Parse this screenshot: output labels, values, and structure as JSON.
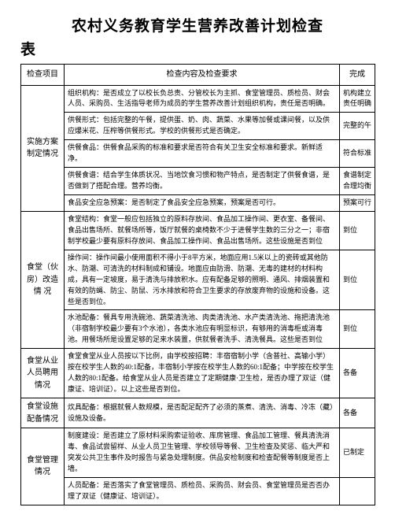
{
  "title": "农村义务教育学生营养改善计划检查",
  "subtitle": "表",
  "headers": {
    "project": "检查项目",
    "content": "检查内容及检查要求",
    "status": "完成"
  },
  "sections": [
    {
      "project": "实施方案制定情况",
      "rows": [
        {
          "content": "组织机构：是否成立了以校长负总责、分管校长为主抓、食堂管理员、质检员、财会人员、采购员、生活指导老师为成员的学生营养改善计划组织机构，责任是否明确。",
          "status": "机构建立 责任明确"
        },
        {
          "content": "供餐形式：包括完整的午餐，提供蛋、奶、肉、蔬菜、水果等加餐或课间餐，以及供应爆米花、压榨等供餐形式。学校的供餐形式是否确定。",
          "status": "完整的午"
        },
        {
          "content": "供餐食品：供餐食品采购的标准和要求是否符合有关卫生安全标准和要求。新鲜适净。",
          "status": "符合标准"
        },
        {
          "content": "供餐食谱：结合学生体质状况、当地饮食习惯和物产特点，是否制定了供餐食谱，是否做到了搭配合理。营养均衡。",
          "status": "食谱制定 合理均衡"
        },
        {
          "content": "食品安全应急预案：是否制定了食品安全应急预案，预案是否可行。",
          "status": "预案可行"
        }
      ]
    },
    {
      "project": "食堂（伙房）改造情   况",
      "rows": [
        {
          "content": "食堂结构：食堂一般应包括独立的原料存放间、食品加工操作间、更衣室、备餐间、食品出售场所、就餐场所等，饭厅就餐的桌椅数不少于进餐学生数的三分之一；非宿制学校最少要有原料存放间、食品加工操作间、食品出售场所。这些设施是否到位",
          "status": "到位"
        },
        {
          "content": "操作间：操作间最小使用面积不得小于8平方米，地面应用1.5米以上的瓷砖或其他防水、防潮、可清洗的材料制成和铺设。地面应由防滑、防潮、无毒的建材的材料构成，具有一定坡度，易于清洗与排放积水。应有配备足够的照明、通风、排烟装置和有效的防蝇、防尘、防鼠、污水排放和符合卫生要求的存放废弃物的设施和设备。这些是否到位。",
          "status": "到位"
        },
        {
          "content": "水池配备：餐具专用洗碗池、蔬菜清洗池、肉类清洗池、水产类清洗池、拖把清洗池（非宿制学校最少要有3个水池），各类水池应有明显标识，有够用的消毒柜或消毒池。用餐场所是设置足够的足来水装置，供就餐者洗手、清洗餐具。这些是否到位",
          "status": "到位"
        }
      ]
    },
    {
      "project": "食堂从业人员聘用情况",
      "rows": [
        {
          "content": "食堂食堂从业人员按以下比例，由学校按招聘：丰宿宿制小学（含普社、高输小学）按在校学生人数的40:1配备，丰宿制小学按在校学生人数的60:1配备；中学按在校学生人数的80:1配备。给食堂从业人员是否建立了定期健康·卫生检，是否办理了双证（健康证、培训证）。以上这些是否到位。",
          "status": "各备"
        }
      ]
    },
    {
      "project": "食堂设施配备情况",
      "rows": [
        {
          "content": "炊具配备：根据就餐人数规模，是否配足配齐了必须的蒸煮、清洗、消毒、冷冻（藏）设施及设备。",
          "status": "各备"
        }
      ]
    },
    {
      "project": "食堂管理情况",
      "rows": [
        {
          "content": "制度建设：是否建立了原材料采购索证验收、库房管理、食品加工管理、餐具清洗消毒、食品试尝留样、从业人员卫生管理、学校领导等餐、卫生检查及奖惩、临大严和突发公共卫生事件及时报告与紧急处理制度。供品安检制度和检查配餐等制度是否上墙。",
          "status": "已制定"
        },
        {
          "content": "人员配备：是否落实了食堂管理员、质检员、采购员、财会员、食堂管理员是否否办理了双证（健康证、培训证）。",
          "status": ""
        }
      ]
    }
  ]
}
